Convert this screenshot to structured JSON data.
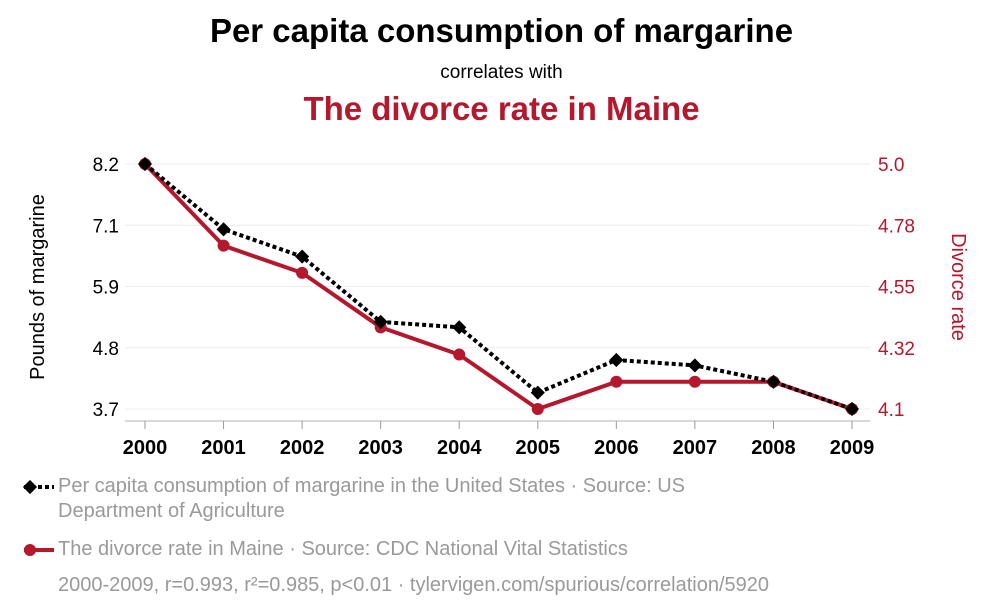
{
  "chart_data": {
    "type": "line",
    "title": "Per capita consumption of margarine",
    "connector": "correlates with",
    "subtitle": "The divorce rate in Maine",
    "x": [
      "2000",
      "2001",
      "2002",
      "2003",
      "2004",
      "2005",
      "2006",
      "2007",
      "2008",
      "2009"
    ],
    "left_axis": {
      "label": "Pounds of margarine",
      "ticks": [
        "8.2",
        "7.1",
        "5.9",
        "4.8",
        "3.7"
      ],
      "range": [
        3.7,
        8.2
      ]
    },
    "right_axis": {
      "label": "Divorce rate",
      "ticks": [
        "5.0",
        "4.78",
        "4.55",
        "4.32",
        "4.1"
      ],
      "range": [
        4.1,
        5.0
      ]
    },
    "series": [
      {
        "name": "Per capita consumption of margarine in the United States · Source: US Department of Agriculture",
        "axis": "left",
        "color": "#000000",
        "style": "dotted",
        "marker": "diamond",
        "values": [
          8.2,
          7.0,
          6.5,
          5.3,
          5.2,
          4.0,
          4.6,
          4.5,
          4.2,
          3.7
        ]
      },
      {
        "name": "The divorce rate in Maine · Source: CDC National Vital Statistics",
        "axis": "right",
        "color": "#b5172c",
        "style": "solid",
        "marker": "circle",
        "values": [
          5.0,
          4.7,
          4.6,
          4.4,
          4.3,
          4.1,
          4.2,
          4.2,
          4.2,
          4.1
        ]
      }
    ],
    "grid": true,
    "legend_position": "bottom"
  },
  "footer": "2000-2009, r=0.993, r²=0.985, p<0.01 · tylervigen.com/spurious/correlation/5920"
}
